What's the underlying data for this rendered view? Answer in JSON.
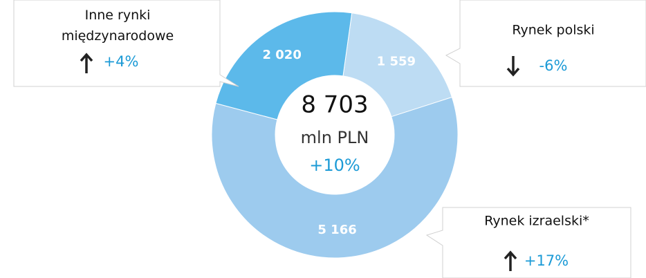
{
  "chart_data": {
    "type": "donut",
    "categories": [
      "Rynek polski",
      "Rynek izraelski*",
      "Inne rynki międzynarodowe"
    ],
    "values": [
      1559,
      5166,
      2020
    ],
    "value_labels": [
      "1 559",
      "5 166",
      "2 020"
    ],
    "colors": [
      "#bddcf3",
      "#9dcbee",
      "#5cb9ea"
    ],
    "changes": [
      "-6%",
      "+17%",
      "+4%"
    ],
    "change_direction": [
      "down",
      "up",
      "up"
    ],
    "change_color": "#1b9ad6",
    "center_text": [
      "8 703",
      "mln PLN",
      "+10%"
    ]
  }
}
